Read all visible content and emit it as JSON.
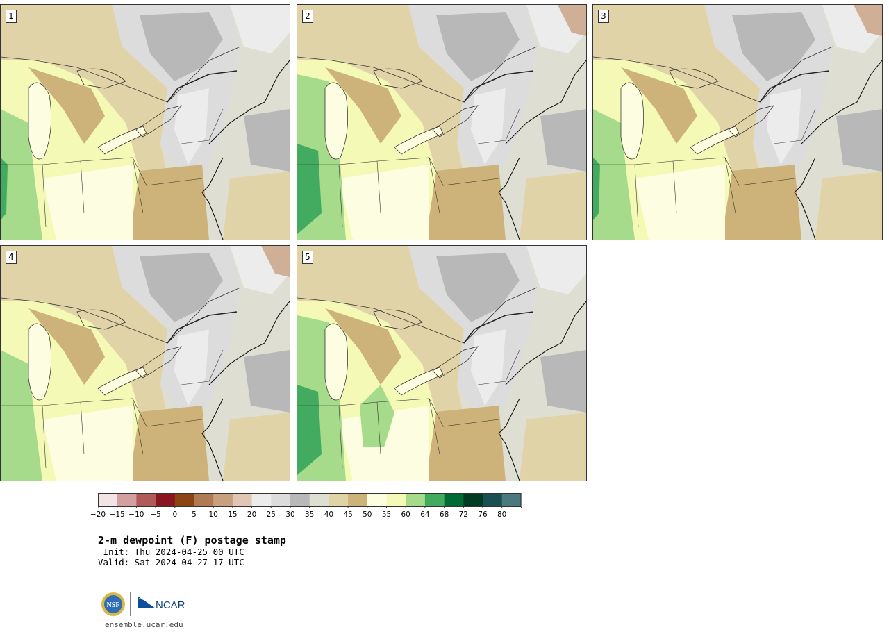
{
  "panels": [
    {
      "label": "1",
      "variant": 0
    },
    {
      "label": "2",
      "variant": 1
    },
    {
      "label": "3",
      "variant": 2
    },
    {
      "label": "4",
      "variant": 3
    },
    {
      "label": "5",
      "variant": 4
    }
  ],
  "colorbar": {
    "colors": [
      "#f2e4e4",
      "#d2a0a0",
      "#b05a5a",
      "#8b1520",
      "#8b4513",
      "#b07a55",
      "#c8a080",
      "#e2c6b4",
      "#ececec",
      "#dcdcdc",
      "#b8b8b8",
      "#dedfd2",
      "#e0d3a8",
      "#cdb37a",
      "#fdfde1",
      "#f5f9b6",
      "#a5db8a",
      "#43ab5f",
      "#006b35",
      "#003c22",
      "#1b4f52",
      "#4a7a7e"
    ],
    "ticks": [
      "−20",
      "−15",
      "−10",
      "−5",
      "0",
      "5",
      "10",
      "15",
      "20",
      "25",
      "30",
      "35",
      "40",
      "45",
      "50",
      "55",
      "60",
      "64",
      "68",
      "72",
      "76",
      "80"
    ]
  },
  "title": "2-m dewpoint (F) postage stamp",
  "init": " Init: Thu 2024-04-25 00 UTC",
  "valid": "Valid: Sat 2024-04-27 17 UTC",
  "logos": {
    "nsf_text": "NSF",
    "ncar_text": "NCAR"
  },
  "url": "ensemble.ucar.edu"
}
